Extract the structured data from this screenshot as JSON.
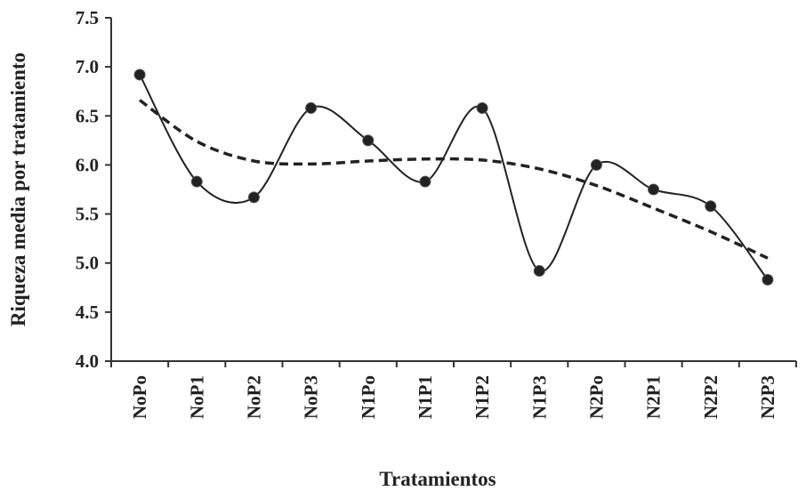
{
  "chart_data": {
    "type": "line",
    "title": "",
    "xlabel": "Tratamientos",
    "ylabel": "Riqueza media por tratamiento",
    "categories": [
      "NoPo",
      "NoP1",
      "NoP2",
      "NoP3",
      "N1Po",
      "N1P1",
      "N1P2",
      "N1P3",
      "N2Po",
      "N2P1",
      "N2P2",
      "N2P3"
    ],
    "ylim": [
      4.0,
      7.5
    ],
    "yticks": [
      "4.0",
      "4.5",
      "5.0",
      "5.5",
      "6.0",
      "6.5",
      "7.0",
      "7.5"
    ],
    "grid": false,
    "series": [
      {
        "style": "solid-smooth-with-markers",
        "values": [
          6.92,
          5.83,
          5.67,
          6.58,
          6.25,
          5.83,
          6.58,
          4.92,
          6.0,
          5.75,
          5.58,
          4.83
        ]
      },
      {
        "style": "dashed-trend",
        "values": [
          6.66,
          6.24,
          6.04,
          6.01,
          6.04,
          6.06,
          6.05,
          5.96,
          5.79,
          5.56,
          5.32,
          5.05
        ]
      }
    ],
    "colors": {
      "line": "#222222",
      "marker": "#222222"
    }
  }
}
